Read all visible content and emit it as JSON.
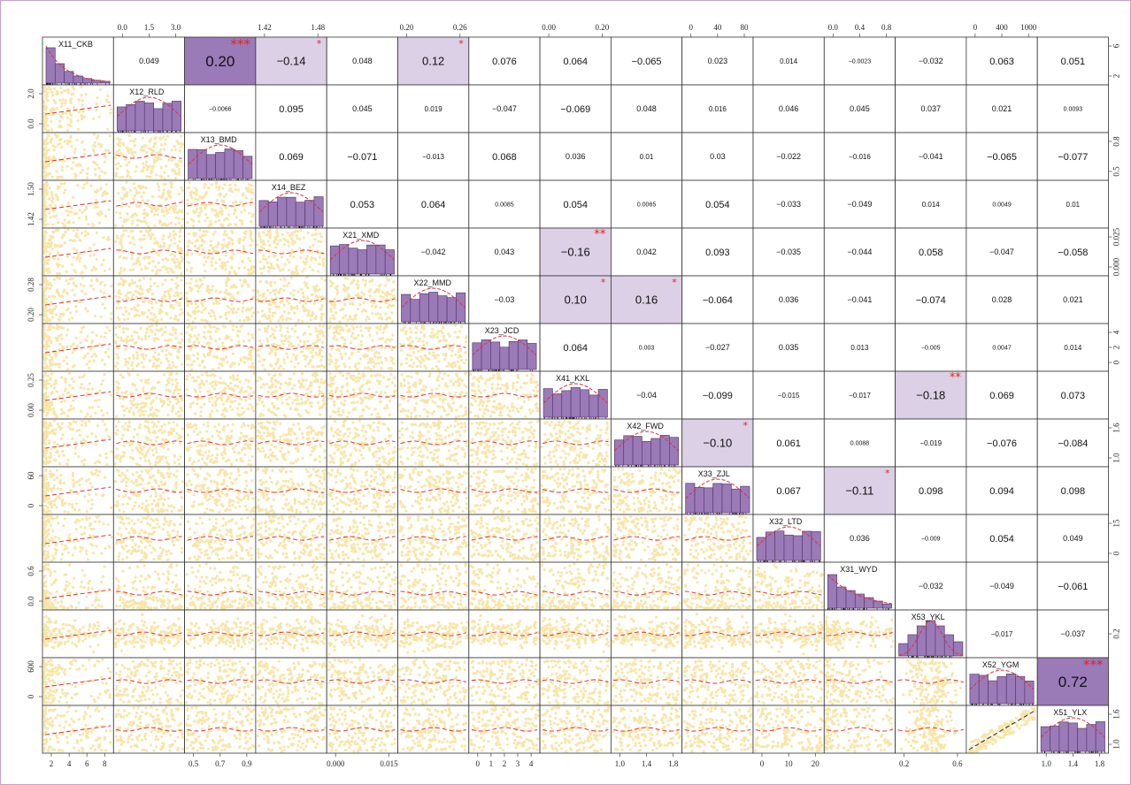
{
  "chart_data": {
    "type": "scatter-matrix",
    "variables": [
      "X11_CKB",
      "X12_RLD",
      "X13_BMD",
      "X14_BEZ",
      "X21_XMD",
      "X22_MMD",
      "X23_JCD",
      "X41_KXL",
      "X42_FWD",
      "X33_ZJL",
      "X32_LTD",
      "X31_WYD",
      "X53_YKL",
      "X52_YGM",
      "X51_YLX"
    ],
    "skew": [
      3,
      0,
      0,
      0,
      0,
      0,
      0,
      0,
      0,
      0,
      0,
      2,
      1,
      0,
      0
    ],
    "correlations": [
      [
        "0.049",
        "0.20",
        "-0.14",
        "0.048",
        "0.12",
        "0.076",
        "0.064",
        "-0.065",
        "0.023",
        "0.014",
        "-0.0023",
        "-0.032",
        "0.063",
        "0.051"
      ],
      [
        "-0.0066",
        "0.095",
        "0.045",
        "0.019",
        "-0.047",
        "-0.069",
        "0.048",
        "0.016",
        "0.046",
        "0.045",
        "0.037",
        "0.021",
        "0.0093"
      ],
      [
        "0.069",
        "-0.071",
        "-0.013",
        "0.068",
        "0.036",
        "0.01",
        "0.03",
        "-0.022",
        "-0.016",
        "-0.041",
        "-0.065",
        "-0.077"
      ],
      [
        "0.053",
        "0.064",
        "0.0085",
        "0.054",
        "0.0065",
        "0.054",
        "-0.033",
        "-0.049",
        "0.014",
        "0.0049",
        "0.01"
      ],
      [
        "-0.042",
        "0.043",
        "-0.16",
        "0.042",
        "0.093",
        "-0.035",
        "-0.044",
        "0.058",
        "-0.047",
        "-0.058"
      ],
      [
        "-0.03",
        "0.10",
        "0.16",
        "-0.064",
        "0.036",
        "-0.041",
        "-0.074",
        "0.028",
        "0.021"
      ],
      [
        "0.064",
        "0.003",
        "-0.027",
        "0.035",
        "0.013",
        "-0.005",
        "0.0047",
        "0.014"
      ],
      [
        "-0.04",
        "-0.099",
        "-0.015",
        "-0.017",
        "-0.18",
        "0.069",
        "0.073"
      ],
      [
        "-0.10",
        "0.061",
        "0.0088",
        "-0.019",
        "-0.076",
        "-0.084"
      ],
      [
        "0.067",
        "-0.11",
        "0.098",
        "0.094",
        "0.098"
      ],
      [
        "0.036",
        "-0.009",
        "0.054",
        "0.049"
      ],
      [
        "-0.032",
        "-0.049",
        "-0.061"
      ],
      [
        "-0.017",
        "-0.037"
      ],
      [
        "0.72"
      ]
    ],
    "stars": [
      [
        "",
        "***",
        "*",
        "",
        "*",
        "",
        "",
        "",
        "",
        "",
        "",
        "",
        "",
        ""
      ],
      [
        "",
        "",
        "",
        "",
        "",
        "",
        "",
        "",
        "",
        "",
        "",
        "",
        ""
      ],
      [
        "",
        "",
        "",
        "",
        "",
        "",
        "",
        "",
        "",
        "",
        "",
        ""
      ],
      [
        "",
        "",
        "",
        "",
        "",
        "",
        "",
        "",
        "",
        "",
        ""
      ],
      [
        "",
        "",
        "**",
        "",
        "",
        "",
        "",
        "",
        "",
        ""
      ],
      [
        "",
        "*",
        "*",
        "",
        "",
        "",
        "",
        "",
        ""
      ],
      [
        "",
        "",
        "",
        "",
        "",
        "",
        "",
        ""
      ],
      [
        "",
        "",
        "",
        "",
        "**",
        "",
        ""
      ],
      [
        "*",
        "",
        "",
        "",
        "",
        ""
      ],
      [
        "",
        "*",
        "",
        "",
        ""
      ],
      [
        "",
        "",
        "",
        ""
      ],
      [
        "",
        "",
        ""
      ],
      [
        "",
        ""
      ],
      [
        "***"
      ]
    ],
    "top_axis_ticks": [
      {
        "col": 1,
        "labels": [
          "0.0",
          "1.5",
          "3.0"
        ]
      },
      {
        "col": 3,
        "labels": [
          "1.42",
          "1.48"
        ]
      },
      {
        "col": 5,
        "labels": [
          "0.20",
          "0.26"
        ]
      },
      {
        "col": 7,
        "labels": [
          "0.00",
          "0.20"
        ]
      },
      {
        "col": 9,
        "labels": [
          "0",
          "40",
          "80"
        ]
      },
      {
        "col": 11,
        "labels": [
          "0.0",
          "0.4",
          "0.8"
        ]
      },
      {
        "col": 13,
        "labels": [
          "0",
          "400",
          "1000"
        ]
      }
    ],
    "bottom_axis_ticks": [
      {
        "col": 0,
        "labels": [
          "2",
          "4",
          "6",
          "8"
        ]
      },
      {
        "col": 2,
        "labels": [
          "0.5",
          "0.7",
          "0.9"
        ]
      },
      {
        "col": 4,
        "labels": [
          "0.000",
          "0.015"
        ]
      },
      {
        "col": 6,
        "labels": [
          "0",
          "1",
          "2",
          "3",
          "4"
        ]
      },
      {
        "col": 8,
        "labels": [
          "1.0",
          "1.4",
          "1.8"
        ]
      },
      {
        "col": 10,
        "labels": [
          "0",
          "10",
          "20"
        ]
      },
      {
        "col": 12,
        "labels": [
          "0.2",
          "0.6"
        ]
      },
      {
        "col": 14,
        "labels": [
          "1.0",
          "1.4",
          "1.8"
        ]
      }
    ],
    "left_axis_ticks": [
      {
        "row": 1,
        "labels": [
          "0.0",
          "2.0"
        ]
      },
      {
        "row": 3,
        "labels": [
          "1.42",
          "1.50"
        ]
      },
      {
        "row": 5,
        "labels": [
          "0.20",
          "0.28"
        ]
      },
      {
        "row": 7,
        "labels": [
          "0.00",
          "0.25"
        ]
      },
      {
        "row": 9,
        "labels": [
          "0",
          "60"
        ]
      },
      {
        "row": 11,
        "labels": [
          "0.0",
          "0.6"
        ]
      },
      {
        "row": 13,
        "labels": [
          "0",
          "600"
        ]
      }
    ],
    "right_axis_ticks": [
      {
        "row": 0,
        "labels": [
          "2",
          "6"
        ]
      },
      {
        "row": 2,
        "labels": [
          "0.5",
          "0.8"
        ]
      },
      {
        "row": 4,
        "labels": [
          "0.000",
          "0.025"
        ]
      },
      {
        "row": 6,
        "labels": [
          "0",
          "2",
          "4"
        ]
      },
      {
        "row": 8,
        "labels": [
          "1.0",
          "1.6"
        ]
      },
      {
        "row": 10,
        "labels": [
          "0",
          "15"
        ]
      },
      {
        "row": 12,
        "labels": [
          "0.2"
        ]
      },
      {
        "row": 14,
        "labels": [
          "1.0",
          "1.6"
        ]
      }
    ],
    "colors": {
      "points": "#f3d060",
      "hist": "#9b7ab8",
      "density": "#e0303a",
      "highlight": "#dcd0e6",
      "star": "#e8201c"
    }
  }
}
